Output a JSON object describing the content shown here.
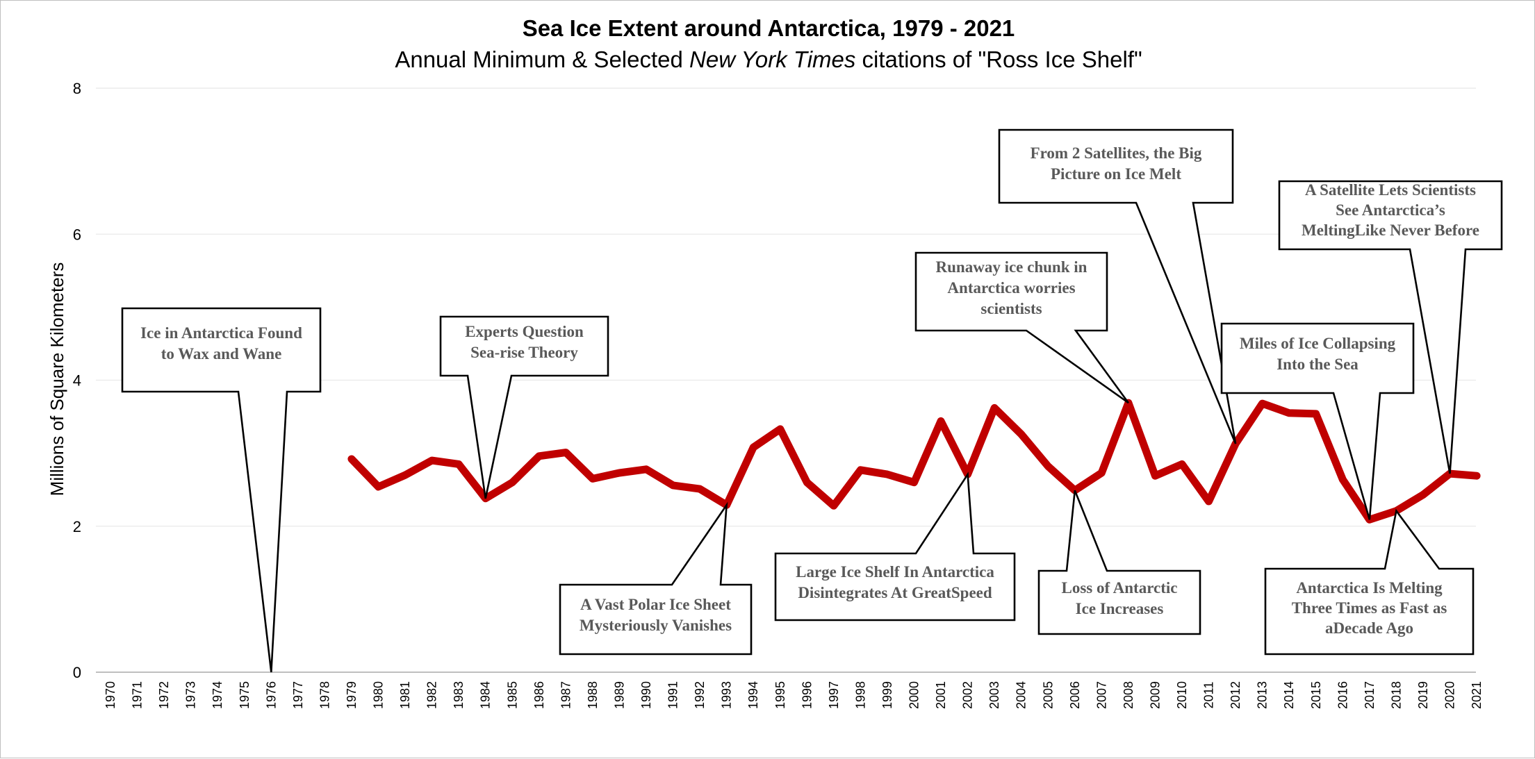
{
  "chart_data": {
    "type": "line",
    "title": "Sea Ice Extent around Antarctica, 1979 - 2021",
    "subtitle_parts": [
      "Annual Minimum & Selected ",
      "New York Times",
      " citations of \"Ross Ice Shelf\""
    ],
    "xlabel": "",
    "ylabel": "Millions of Square Kilometers",
    "ylim": [
      0,
      8
    ],
    "yticks": [
      0,
      2,
      4,
      6,
      8
    ],
    "grid": true,
    "legend": "none",
    "colors": {
      "series": "#c00000",
      "callout_text": "#595959",
      "grid": "#ececec"
    },
    "x": [
      1970,
      1971,
      1972,
      1973,
      1974,
      1975,
      1976,
      1977,
      1978,
      1979,
      1980,
      1981,
      1982,
      1983,
      1984,
      1985,
      1986,
      1987,
      1988,
      1989,
      1990,
      1991,
      1992,
      1993,
      1994,
      1995,
      1996,
      1997,
      1998,
      1999,
      2000,
      2001,
      2002,
      2003,
      2004,
      2005,
      2006,
      2007,
      2008,
      2009,
      2010,
      2011,
      2012,
      2013,
      2014,
      2015,
      2016,
      2017,
      2018,
      2019,
      2020,
      2021
    ],
    "series": [
      {
        "values": [
          null,
          null,
          null,
          null,
          null,
          null,
          null,
          null,
          null,
          2.92,
          2.54,
          2.7,
          2.9,
          2.85,
          2.38,
          2.6,
          2.96,
          3.01,
          2.65,
          2.73,
          2.78,
          2.56,
          2.51,
          2.29,
          3.08,
          3.33,
          2.6,
          2.28,
          2.77,
          2.71,
          2.6,
          3.44,
          2.71,
          3.62,
          3.26,
          2.82,
          2.49,
          2.73,
          3.69,
          2.69,
          2.85,
          2.34,
          3.13,
          3.68,
          3.55,
          3.54,
          2.64,
          2.09,
          2.21,
          2.43,
          2.72,
          2.69
        ]
      }
    ],
    "annotations": [
      {
        "lines": [
          "Ice in Antarctica Found",
          "to Wax and Wane"
        ],
        "year": 1976,
        "value": 0
      },
      {
        "lines": [
          "Experts Question",
          "Sea-rise Theory"
        ],
        "year": 1984,
        "value": 2.38
      },
      {
        "lines": [
          "A Vast Polar Ice Sheet",
          "Mysteriously Vanishes"
        ],
        "year": 1993,
        "value": 2.29
      },
      {
        "lines": [
          "Large Ice Shelf In Antarctica",
          "Disintegrates At GreatSpeed"
        ],
        "year": 2002,
        "value": 2.71
      },
      {
        "lines": [
          "Runaway ice chunk in",
          "Antarctica worries",
          "scientists"
        ],
        "year": 2008,
        "value": 3.69
      },
      {
        "lines": [
          "Loss of Antarctic",
          "Ice Increases"
        ],
        "year": 2006,
        "value": 2.49
      },
      {
        "lines": [
          "From 2 Satellites, the Big",
          "Picture on Ice Melt"
        ],
        "year": 2012,
        "value": 3.13
      },
      {
        "lines": [
          "Miles of Ice Collapsing",
          "Into the Sea"
        ],
        "year": 2017,
        "value": 2.09
      },
      {
        "lines": [
          "A Satellite Lets Scientists",
          "See Antarctica’s",
          "MeltingLike Never Before"
        ],
        "year": 2020,
        "value": 2.72
      },
      {
        "lines": [
          "Antarctica Is Melting",
          "Three Times as Fast as",
          "aDecade Ago"
        ],
        "year": 2018,
        "value": 2.21
      }
    ]
  }
}
